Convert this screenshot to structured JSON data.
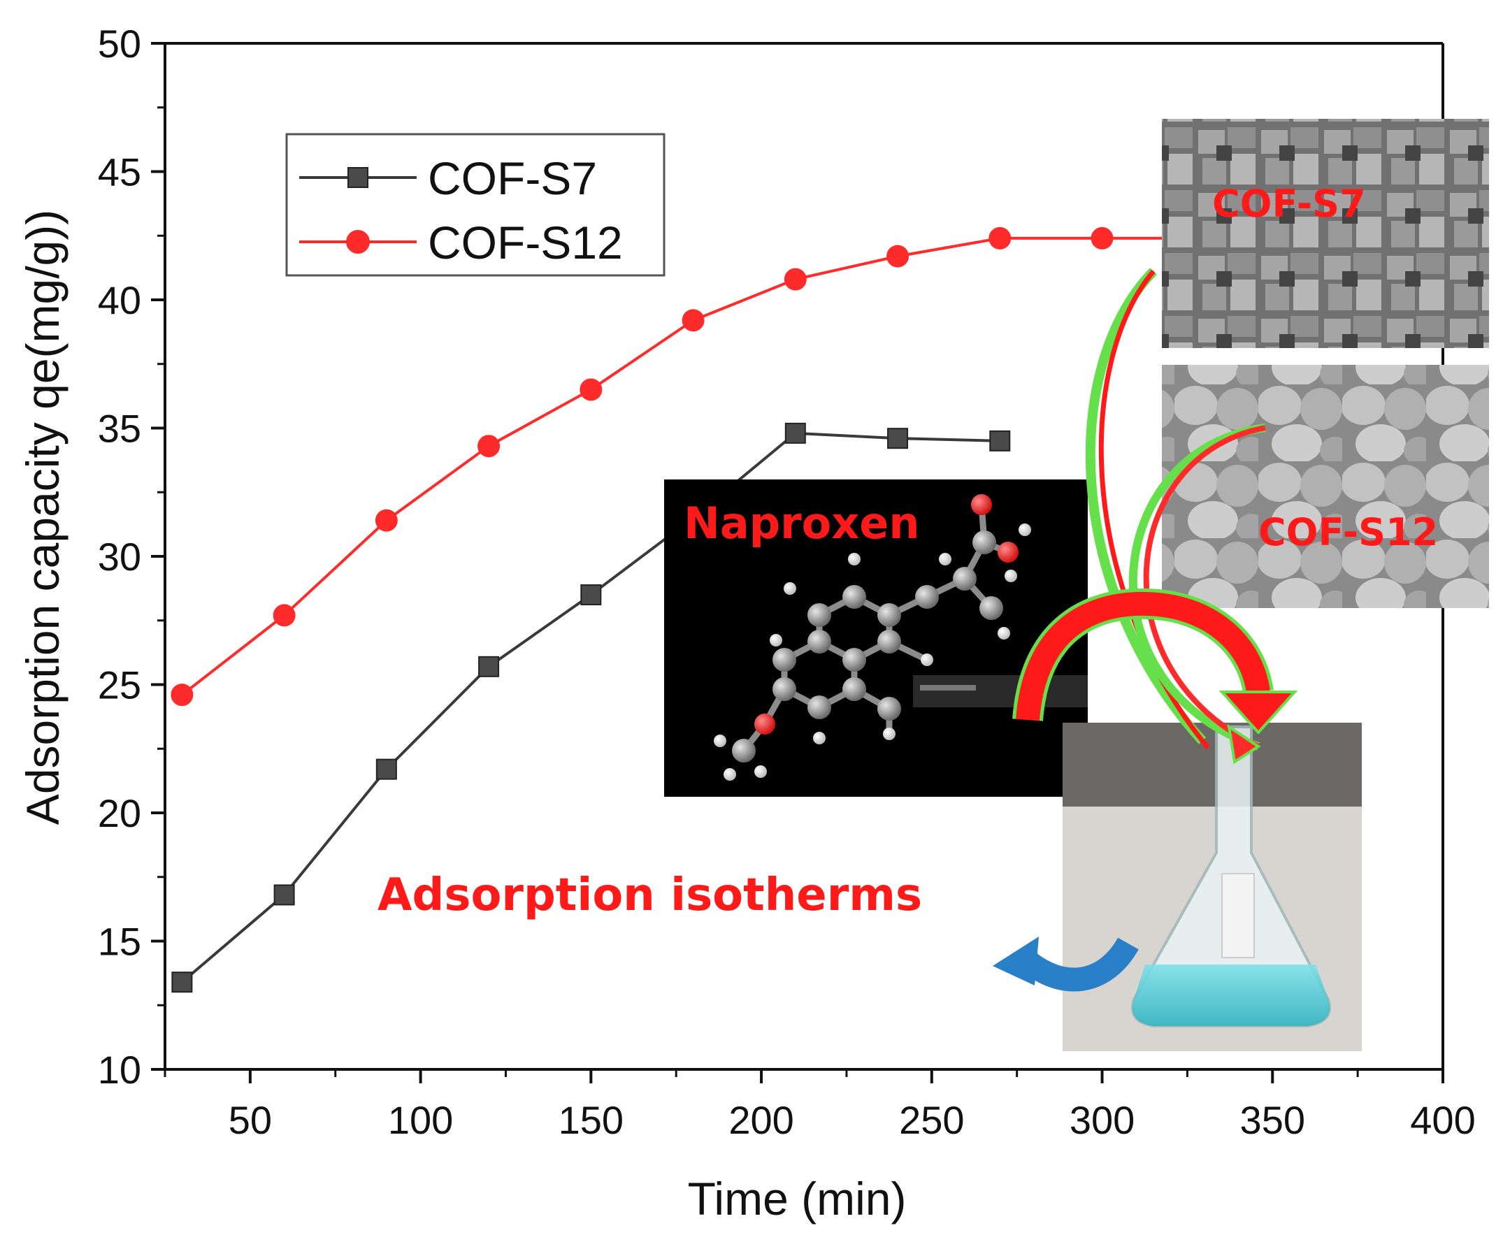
{
  "chart_data": {
    "type": "line",
    "xlabel": "Time (min)",
    "ylabel": "Adsorption capacity qe(mg/g))",
    "xlim": [
      25,
      400
    ],
    "ylim": [
      10,
      50
    ],
    "x_ticks": [
      "50",
      "100",
      "150",
      "200",
      "250",
      "300",
      "350",
      "400"
    ],
    "y_ticks": [
      "10",
      "15",
      "20",
      "25",
      "30",
      "35",
      "40",
      "45",
      "50"
    ],
    "legend_position": "top-left",
    "series": [
      {
        "name": "COF-S7",
        "color": "#3a3a3a",
        "marker": "square",
        "x": [
          30,
          60,
          90,
          120,
          150,
          180,
          210,
          240,
          270
        ],
        "y": [
          13.4,
          16.8,
          21.7,
          25.7,
          28.5,
          31.5,
          34.8,
          34.6,
          34.5
        ]
      },
      {
        "name": "COF-S12",
        "color": "#ff2a2a",
        "marker": "circle",
        "x": [
          30,
          60,
          90,
          120,
          150,
          180,
          210,
          240,
          270,
          300,
          330
        ],
        "y": [
          24.6,
          27.7,
          31.4,
          34.3,
          36.5,
          39.2,
          40.8,
          41.7,
          42.4,
          42.4,
          42.4
        ]
      }
    ],
    "annotations": {
      "naproxen": "Naproxen",
      "isotherms": "Adsorption isotherms",
      "sem_s7": "COF-S7",
      "sem_s12": "COF-S12"
    }
  }
}
